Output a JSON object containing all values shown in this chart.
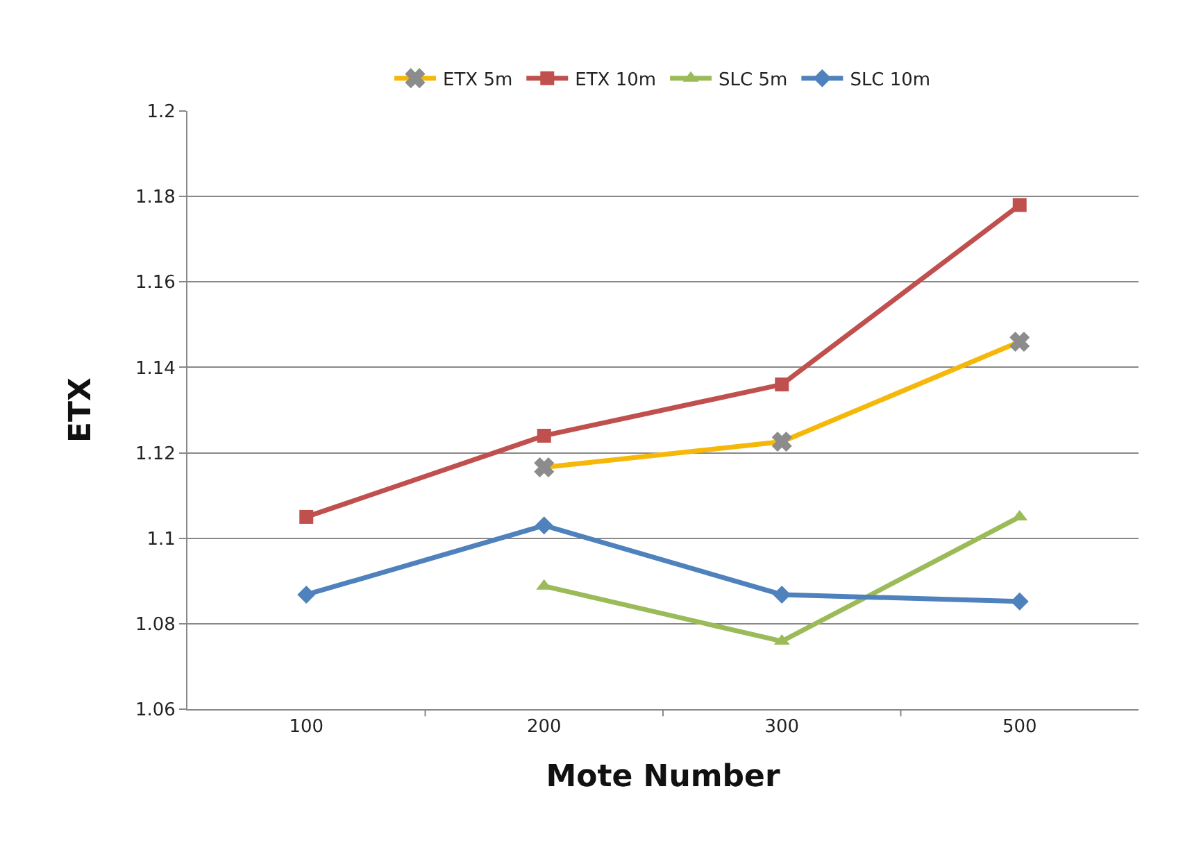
{
  "chart_data": {
    "type": "line",
    "xlabel": "Mote Number",
    "ylabel": "ETX",
    "categories": [
      "100",
      "200",
      "300",
      "500"
    ],
    "series": [
      {
        "name": "ETX 5m",
        "color": "#f5b80a",
        "marker": "cross",
        "values": [
          null,
          1.1166,
          1.1226,
          1.146
        ]
      },
      {
        "name": "ETX 10m",
        "color": "#c0504d",
        "marker": "square",
        "values": [
          1.105,
          1.124,
          1.136,
          1.178
        ]
      },
      {
        "name": "SLC 5m",
        "color": "#9bbb59",
        "marker": "triangle",
        "values": [
          null,
          1.0888,
          1.0759,
          1.105
        ]
      },
      {
        "name": "SLC 10m",
        "color": "#4f81bd",
        "marker": "diamond",
        "values": [
          1.0868,
          1.103,
          1.0868,
          1.0852
        ]
      }
    ],
    "ylim": [
      1.06,
      1.2
    ],
    "yticks": [
      1.06,
      1.08,
      1.1,
      1.12,
      1.14,
      1.16,
      1.18,
      1.2
    ],
    "grid": "y",
    "legend": "top"
  }
}
